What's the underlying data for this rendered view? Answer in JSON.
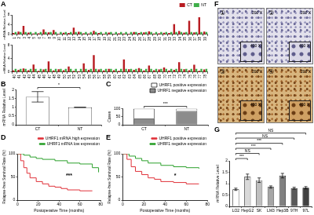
{
  "chart_data": [
    {
      "panel": "A",
      "type": "bar",
      "y_label": "mRNA Relative Level",
      "categories": [
        "1",
        "2",
        "3",
        "4",
        "5",
        "6",
        "7",
        "8",
        "9",
        "10",
        "11",
        "12",
        "13",
        "14",
        "15",
        "16",
        "17",
        "18",
        "19",
        "20",
        "21",
        "22",
        "23",
        "24",
        "25",
        "26",
        "27",
        "28",
        "29",
        "30",
        "31",
        "32",
        "33",
        "34",
        "35",
        "36",
        "37",
        "38",
        "39"
      ],
      "series": [
        {
          "name": "CT",
          "color": "#b81c22",
          "values": [
            0.6,
            1.2,
            3.5,
            0.8,
            0.4,
            0.5,
            2.1,
            0.9,
            1.8,
            0.3,
            0.7,
            0.6,
            2.8,
            1.1,
            0.5,
            0.4,
            1.5,
            0.6,
            0.3,
            0.8,
            0.2,
            0.5,
            0.4,
            0.3,
            1.0,
            0.6,
            0.9,
            1.3,
            0.4,
            0.5,
            0.7,
            0.6,
            4.2,
            1.4,
            0.8,
            5.6,
            0.9,
            7.0,
            1.2
          ]
        },
        {
          "name": "NT",
          "color": "#3fae49",
          "values": [
            1,
            1,
            1,
            1,
            1,
            1,
            1,
            1,
            1,
            1,
            1,
            1,
            1,
            1,
            1,
            1,
            1,
            1,
            1,
            1,
            1,
            1,
            1,
            1,
            1,
            1,
            1,
            1,
            1,
            1,
            1,
            1,
            1,
            1,
            1,
            1,
            1,
            1,
            1
          ]
        }
      ],
      "ylim": [
        0,
        8
      ],
      "yticks": [
        0,
        4,
        8
      ],
      "grid": false,
      "legend": "upper right"
    },
    {
      "type": "bar",
      "y_label": "mRNA Relative Level",
      "categories": [
        "40",
        "41",
        "42",
        "43",
        "44",
        "45",
        "46",
        "47",
        "48",
        "49",
        "50",
        "51",
        "52",
        "53",
        "54",
        "55",
        "56",
        "57",
        "58",
        "59",
        "60",
        "61",
        "62",
        "63",
        "64",
        "65",
        "66",
        "67",
        "68",
        "69",
        "70",
        "71",
        "72",
        "73",
        "74",
        "75",
        "76",
        "77",
        "78"
      ],
      "series": [
        {
          "color": "#b81c22",
          "values": [
            0.5,
            0.7,
            1.1,
            0.6,
            2.3,
            0.4,
            0.8,
            3.2,
            0.5,
            0.9,
            0.6,
            1.7,
            0.4,
            0.3,
            2.6,
            0.7,
            5.1,
            0.8,
            0.5,
            1.0,
            0.6,
            0.4,
            3.8,
            0.9,
            0.7,
            1.2,
            0.5,
            2.0,
            0.6,
            0.8,
            1.4,
            0.5,
            0.7,
            3.0,
            0.9,
            0.6,
            2.2,
            0.4,
            0.8
          ]
        },
        {
          "color": "#3fae49",
          "values": [
            1,
            1,
            1,
            1,
            1,
            1,
            1,
            1,
            1,
            1,
            1,
            1,
            1,
            1,
            1,
            1,
            1,
            1,
            1,
            1,
            1,
            1,
            1,
            1,
            1,
            1,
            1,
            1,
            1,
            1,
            1,
            1,
            1,
            1,
            1,
            1,
            1,
            1,
            1
          ]
        }
      ],
      "ylim": [
        0,
        8
      ],
      "yticks": [
        0,
        4,
        8
      ],
      "grid": false
    },
    {
      "panel": "B",
      "type": "bar",
      "y_label": "mRNA Relative Level",
      "categories": [
        "CT",
        "NT"
      ],
      "values": [
        1.6,
        1.0
      ],
      "error": [
        0.3,
        0
      ],
      "colors": [
        "#ffffff",
        "#ffffff"
      ],
      "ylim": [
        0,
        2
      ],
      "yticks": [
        0,
        0.5,
        1,
        1.5,
        2
      ],
      "grid": false,
      "annotations": [
        {
          "text": "*",
          "from": "CT",
          "to": "NT"
        }
      ]
    },
    {
      "panel": "C",
      "type": "bar",
      "stacked": true,
      "y_label": "Cases",
      "categories": [
        "CT",
        "NT"
      ],
      "series": [
        {
          "name": "UHRF1 positive expression",
          "color": "#ffffff",
          "values": [
            62,
            15
          ]
        },
        {
          "name": "UHRF1 negative expression",
          "color": "#8c8c8c",
          "values": [
            38,
            85
          ]
        }
      ],
      "ylim": [
        0,
        100
      ],
      "yticks": [
        0,
        50,
        100
      ],
      "grid": false,
      "legend": "upper right",
      "annotations": [
        {
          "text": "***",
          "from": "CT",
          "to": "NT"
        }
      ]
    },
    {
      "panel": "D",
      "type": "line",
      "x_label": "Postoperative Time (months)",
      "y_label": "Relapse-free Survival Rate (%)",
      "series": [
        {
          "name": "UHRF1 mRNA high expression",
          "color": "#e0323a",
          "x": [
            0,
            3,
            6,
            9,
            12,
            18,
            24,
            30,
            36,
            42,
            48,
            60,
            72
          ],
          "values": [
            100,
            85,
            70,
            58,
            48,
            40,
            35,
            30,
            28,
            25,
            22,
            20,
            20
          ]
        },
        {
          "name": "UHRF1 mRNA low expression",
          "color": "#2ca02c",
          "x": [
            0,
            6,
            12,
            18,
            24,
            36,
            48,
            60,
            72,
            78
          ],
          "values": [
            100,
            97,
            93,
            90,
            88,
            85,
            80,
            78,
            70,
            60
          ]
        }
      ],
      "xlim": [
        0,
        80
      ],
      "xticks": [
        0,
        20,
        40,
        60,
        80
      ],
      "ylim": [
        0,
        100
      ],
      "yticks": [
        0,
        50,
        100
      ],
      "grid": false,
      "legend": "upper right",
      "annotations": [
        {
          "text": "***"
        }
      ]
    },
    {
      "panel": "E",
      "type": "line",
      "x_label": "Postoperative Time (months)",
      "y_label": "Relapse-free Survival Rate (%)",
      "series": [
        {
          "name": "UHRF1 positive expression",
          "color": "#e0323a",
          "x": [
            0,
            4,
            8,
            12,
            18,
            24,
            30,
            36,
            48,
            60,
            72
          ],
          "values": [
            100,
            88,
            72,
            62,
            55,
            48,
            45,
            40,
            38,
            35,
            35
          ]
        },
        {
          "name": "UHRF1 negative expression",
          "color": "#2ca02c",
          "x": [
            0,
            6,
            12,
            18,
            24,
            36,
            48,
            60,
            72
          ],
          "values": [
            100,
            95,
            90,
            85,
            80,
            75,
            72,
            70,
            68
          ]
        }
      ],
      "xlim": [
        0,
        80
      ],
      "xticks": [
        0,
        20,
        40,
        60,
        80
      ],
      "ylim": [
        0,
        100
      ],
      "yticks": [
        0,
        50,
        100
      ],
      "grid": false,
      "legend": "upper right",
      "annotations": [
        {
          "text": "*"
        }
      ]
    },
    {
      "panel": "G",
      "type": "bar",
      "y_label": "mRNA Relative Level",
      "categories": [
        "LO2",
        "HepG2",
        "SK",
        "LM3",
        "Hep3B",
        "97H",
        "97L"
      ],
      "values": [
        0.75,
        1.3,
        1.15,
        0.85,
        1.35,
        0.8,
        0.82
      ],
      "error": [
        0.05,
        0.12,
        0.1,
        0.05,
        0.1,
        0.04,
        0.05
      ],
      "colors": [
        "#ffffff",
        "#d9d9d9",
        "#bfbfbf",
        "#a6a6a6",
        "#808080",
        "#595959",
        "#404040"
      ],
      "ylim": [
        0,
        2
      ],
      "yticks": [
        0,
        0.5,
        1,
        1.5,
        2
      ],
      "grid": false,
      "annotations": [
        {
          "text": "***",
          "from": "LO2",
          "to": "HepG2"
        },
        {
          "text": "NS",
          "from": "LO2",
          "to": "SK"
        },
        {
          "text": "***",
          "from": "LO2",
          "to": "LM3"
        },
        {
          "text": "***",
          "from": "LO2",
          "to": "Hep3B"
        },
        {
          "text": "NS",
          "from": "LO2",
          "to": "97H"
        },
        {
          "text": "NS",
          "from": "LO2",
          "to": "97L"
        }
      ]
    }
  ],
  "image_panel": {
    "panel": "F",
    "images": [
      {
        "label": "①",
        "magnification": "200 X",
        "inset_magnification": "400 X"
      },
      {
        "label": "②",
        "magnification": "200 X",
        "inset_magnification": "400 X"
      },
      {
        "label": "③",
        "magnification": "200 X",
        "inset_magnification": "400 X"
      },
      {
        "label": "④",
        "magnification": "200 X",
        "inset_magnification": "400 X"
      }
    ]
  }
}
